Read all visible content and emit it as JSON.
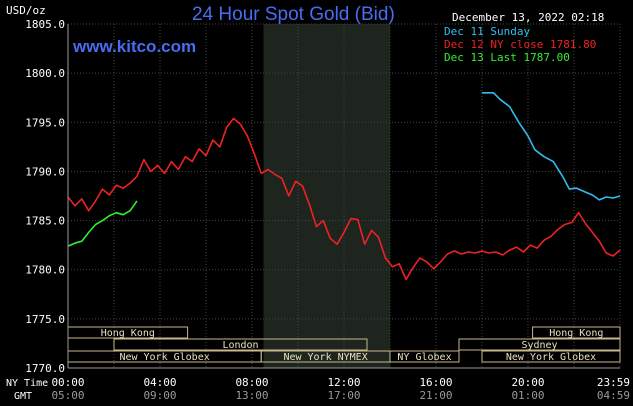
{
  "chart_data": {
    "type": "line",
    "title": "24 Hour Spot Gold (Bid)",
    "source": "www.kitco.com",
    "unit": "USD/oz",
    "timestamp": "December 13, 2022 02:18",
    "ylim": [
      1770,
      1805
    ],
    "yticks": [
      "1805.0",
      "1800.0",
      "1795.0",
      "1790.0",
      "1785.0",
      "1780.0",
      "1775.0",
      "1770.0"
    ],
    "xlim": [
      0,
      24
    ],
    "xticks": [
      {
        "ny": "00:00",
        "gmt": "05:00"
      },
      {
        "ny": "04:00",
        "gmt": "09:00"
      },
      {
        "ny": "08:00",
        "gmt": "13:00"
      },
      {
        "ny": "12:00",
        "gmt": "17:00"
      },
      {
        "ny": "16:00",
        "gmt": "21:00"
      },
      {
        "ny": "20:00",
        "gmt": "01:00"
      },
      {
        "ny": "23:59",
        "gmt": "04:59"
      }
    ],
    "row_labels": {
      "ny": "NY Time",
      "gmt": "GMT"
    },
    "grid": true,
    "legend_position": "top-right",
    "highlight_band": [
      8.5,
      14
    ],
    "series": [
      {
        "name": "Dec 11 Sunday",
        "color": "#33bbee",
        "x": [
          18.0,
          18.3,
          18.5,
          18.8,
          19.2,
          19.6,
          20.0,
          20.3,
          20.7,
          21.1,
          21.5,
          21.8,
          22.1,
          22.5,
          22.8,
          23.1,
          23.4,
          23.7,
          24.0
        ],
        "y": [
          1798.0,
          1798.0,
          1798.0,
          1797.3,
          1796.6,
          1795.0,
          1793.6,
          1792.2,
          1791.5,
          1791.0,
          1789.5,
          1788.2,
          1788.3,
          1787.9,
          1787.6,
          1787.1,
          1787.4,
          1787.3,
          1787.5
        ]
      },
      {
        "name": "Dec 12 NY close 1781.80",
        "color": "#ee2222",
        "x": [
          0.0,
          0.3,
          0.6,
          0.9,
          1.2,
          1.5,
          1.8,
          2.1,
          2.4,
          2.7,
          3.0,
          3.3,
          3.6,
          3.9,
          4.2,
          4.5,
          4.8,
          5.1,
          5.4,
          5.7,
          6.0,
          6.3,
          6.6,
          6.9,
          7.2,
          7.5,
          7.8,
          8.1,
          8.4,
          8.7,
          9.0,
          9.3,
          9.6,
          9.9,
          10.2,
          10.5,
          10.8,
          11.1,
          11.4,
          11.7,
          12.0,
          12.3,
          12.6,
          12.9,
          13.2,
          13.5,
          13.8,
          14.1,
          14.4,
          14.7,
          15.0,
          15.3,
          15.6,
          15.9,
          16.2,
          16.5,
          16.8,
          17.1,
          17.4,
          17.7,
          18.0,
          18.3,
          18.6,
          18.9,
          19.2,
          19.5,
          19.8,
          20.1,
          20.4,
          20.7,
          21.0,
          21.3,
          21.6,
          21.9,
          22.2,
          22.5,
          22.8,
          23.1,
          23.4,
          23.7,
          24.0
        ],
        "y": [
          1787.4,
          1786.5,
          1787.2,
          1786.0,
          1787.0,
          1788.2,
          1787.6,
          1788.6,
          1788.3,
          1788.8,
          1789.5,
          1791.2,
          1790.0,
          1790.6,
          1789.8,
          1791.0,
          1790.2,
          1791.5,
          1791.0,
          1792.3,
          1791.6,
          1793.2,
          1792.5,
          1794.5,
          1795.4,
          1794.8,
          1793.6,
          1791.8,
          1789.8,
          1790.2,
          1789.7,
          1789.3,
          1787.5,
          1789.0,
          1788.5,
          1786.6,
          1784.4,
          1785.0,
          1783.2,
          1782.6,
          1783.8,
          1785.2,
          1785.1,
          1782.6,
          1784.0,
          1783.3,
          1781.2,
          1780.3,
          1780.6,
          1779.0,
          1780.2,
          1781.2,
          1780.8,
          1780.1,
          1780.8,
          1781.6,
          1781.9,
          1781.6,
          1781.8,
          1781.7,
          1781.9,
          1781.7,
          1781.8,
          1781.5,
          1782.0,
          1782.3,
          1781.8,
          1782.5,
          1782.2,
          1783.0,
          1783.4,
          1784.1,
          1784.6,
          1784.8,
          1785.8,
          1784.7,
          1783.8,
          1782.9,
          1781.7,
          1781.4,
          1782.0
        ]
      },
      {
        "name": "Dec 13 Last 1787.00",
        "color": "#33ee33",
        "x": [
          0.0,
          0.3,
          0.6,
          0.9,
          1.2,
          1.5,
          1.8,
          2.1,
          2.4,
          2.7,
          3.0
        ],
        "y": [
          1782.4,
          1782.7,
          1782.9,
          1783.8,
          1784.6,
          1785.0,
          1785.5,
          1785.8,
          1785.6,
          1786.0,
          1787.0
        ]
      }
    ],
    "sessions": [
      {
        "name": "Hong Kong",
        "row": 1,
        "start": 0,
        "end": 5.2
      },
      {
        "name": "London",
        "row": 2,
        "start": 2.0,
        "end": 13.0
      },
      {
        "name": "New York Globex",
        "row": 3,
        "start": 0,
        "end": 8.4
      },
      {
        "name": "New York NYMEX",
        "row": 3,
        "start": 8.4,
        "end": 14.0
      },
      {
        "name": "NY Globex",
        "row": 3,
        "start": 14.0,
        "end": 17.0
      },
      {
        "name": "Hong Kong",
        "row": 1,
        "start": 20.2,
        "end": 24.0
      },
      {
        "name": "Sydney",
        "row": 2,
        "start": 17.0,
        "end": 24.0
      },
      {
        "name": "New York Globex",
        "row": 3,
        "start": 18.0,
        "end": 24.0
      }
    ]
  }
}
